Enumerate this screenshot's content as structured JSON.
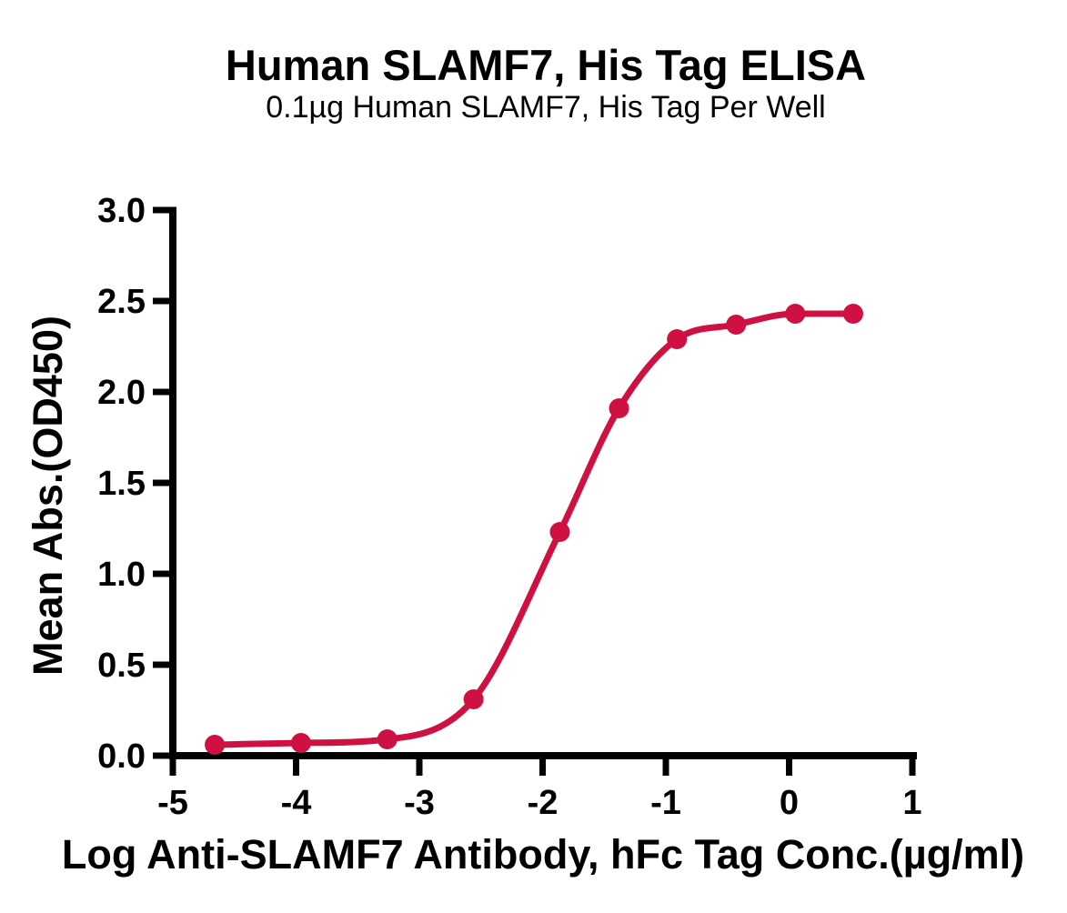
{
  "page": {
    "background": "#FFFFFF"
  },
  "chart_data": {
    "type": "line",
    "title": "Human SLAMF7, His Tag ELISA",
    "subtitle": "0.1µg Human SLAMF7, His Tag Per Well",
    "xlabel": "Log Anti-SLAMF7 Antibody, hFc Tag Conc.(µg/ml)",
    "ylabel": "Mean Abs.(OD450)",
    "xlim": [
      -5,
      1
    ],
    "ylim": [
      0,
      3
    ],
    "x_ticks": [
      -5,
      -4,
      -3,
      -2,
      -1,
      0,
      1
    ],
    "y_ticks": [
      0.0,
      0.5,
      1.0,
      1.5,
      2.0,
      2.5,
      3.0
    ],
    "y_tick_decimals": 1,
    "grid": false,
    "legend": false,
    "series": [
      {
        "x": [
          -4.66,
          -3.96,
          -3.26,
          -2.56,
          -1.86,
          -1.38,
          -0.91,
          -0.43,
          0.05,
          0.52
        ],
        "y": [
          0.06,
          0.07,
          0.09,
          0.31,
          1.23,
          1.91,
          2.29,
          2.37,
          2.43,
          2.43
        ],
        "color": "#CE1141",
        "marker": "circle"
      }
    ],
    "axis_color": "#000000",
    "text_color": "#000000"
  }
}
